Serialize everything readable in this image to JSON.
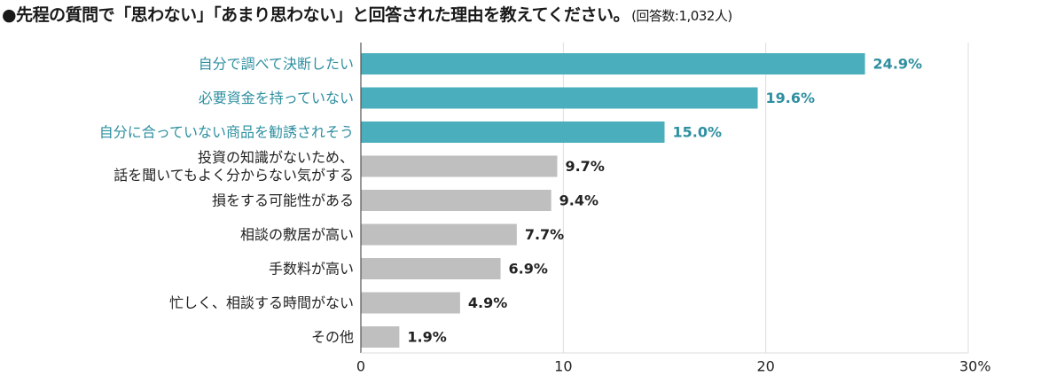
{
  "header": {
    "title": "●先程の質問で「思わない」「あまり思わない」と回答された理由を教えてください。",
    "note": "(回答数:1,032人)"
  },
  "colors": {
    "highlight": "#4aaebc",
    "normal": "#bfbfbf",
    "highlight_text": "#2e8fa0",
    "normal_text": "#222222",
    "grid": "#dddddd",
    "axis": "#555555"
  },
  "chart_data": {
    "type": "bar",
    "orientation": "horizontal",
    "categories": [
      [
        "自分で調べて決断したい"
      ],
      [
        "必要資金を持っていない"
      ],
      [
        "自分に合っていない商品を勧誘されそう"
      ],
      [
        "投資の知識がないため、",
        "話を聞いてもよく分からない気がする"
      ],
      [
        "損をする可能性がある"
      ],
      [
        "相談の敷居が高い"
      ],
      [
        "手数料が高い"
      ],
      [
        "忙しく、相談する時間がない"
      ],
      [
        "その他"
      ]
    ],
    "values": [
      24.9,
      19.6,
      15.0,
      9.7,
      9.4,
      7.7,
      6.9,
      4.9,
      1.9
    ],
    "value_labels": [
      "24.9%",
      "19.6%",
      "15.0%",
      "9.7%",
      "9.4%",
      "7.7%",
      "6.9%",
      "4.9%",
      "1.9%"
    ],
    "highlighted": [
      true,
      true,
      true,
      false,
      false,
      false,
      false,
      false,
      false
    ],
    "xlim": [
      0,
      30
    ],
    "ticks": [
      0,
      10,
      20,
      30
    ],
    "tick_labels": [
      "0",
      "10",
      "20",
      "30%"
    ],
    "grid": true,
    "legend": "none"
  }
}
